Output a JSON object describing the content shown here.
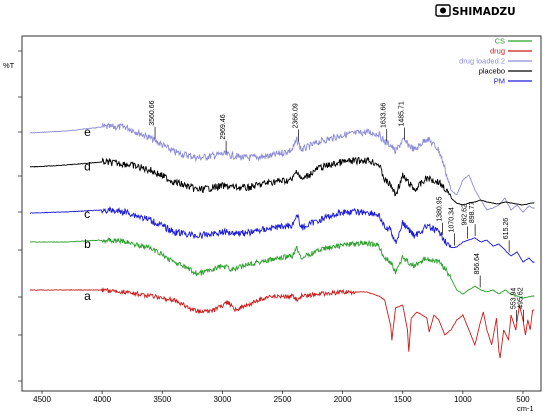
{
  "logo": {
    "brand": "SHIMADZU",
    "icon": "shimadzu-logo-icon"
  },
  "chart_data": {
    "type": "line",
    "title": "",
    "ylabel": "%T",
    "xlabel": "cm-1",
    "xlim": [
      4600,
      400
    ],
    "x_reversed": true,
    "grid": false,
    "legend_position": "top-right",
    "x_ticks": [
      4500,
      4000,
      3500,
      3000,
      2500,
      2000,
      1500,
      1000,
      500
    ],
    "x_tick_labels": [
      "4500",
      "4000",
      "3500",
      "3000",
      "2500",
      "2000",
      "1500",
      "1000",
      "500"
    ],
    "legend": [
      {
        "label": "CS",
        "color": "#2aa02a"
      },
      {
        "label": "drug",
        "color": "#cc1a1a"
      },
      {
        "label": "drug loaded 2",
        "color": "#8c8cd9"
      },
      {
        "label": "placebo",
        "color": "#000000"
      },
      {
        "label": "PM",
        "color": "#1a1ad9"
      }
    ],
    "series": [
      {
        "letter": "e",
        "color": "#8c8cd9",
        "noise": 1.6,
        "noiseRange": [
          4000,
          1100
        ],
        "points": [
          [
            4600,
            133
          ],
          [
            4300,
            131
          ],
          [
            4000,
            127
          ],
          [
            3800,
            127
          ],
          [
            3600,
            138
          ],
          [
            3400,
            152
          ],
          [
            3200,
            158
          ],
          [
            3000,
            154
          ],
          [
            2800,
            158
          ],
          [
            2600,
            156
          ],
          [
            2420,
            150
          ],
          [
            2380,
            140
          ],
          [
            2340,
            150
          ],
          [
            2200,
            142
          ],
          [
            2000,
            135
          ],
          [
            1800,
            132
          ],
          [
            1700,
            134
          ],
          [
            1650,
            142
          ],
          [
            1600,
            145
          ],
          [
            1560,
            152
          ],
          [
            1500,
            140
          ],
          [
            1400,
            150
          ],
          [
            1300,
            138
          ],
          [
            1200,
            150
          ],
          [
            1150,
            168
          ],
          [
            1100,
            190
          ],
          [
            1050,
            195
          ],
          [
            1000,
            180
          ],
          [
            950,
            175
          ],
          [
            900,
            190
          ],
          [
            850,
            200
          ],
          [
            800,
            210
          ],
          [
            750,
            208
          ],
          [
            700,
            205
          ],
          [
            650,
            198
          ],
          [
            600,
            210
          ],
          [
            550,
            205
          ],
          [
            500,
            212
          ],
          [
            450,
            206
          ],
          [
            420,
            208
          ]
        ]
      },
      {
        "letter": "d",
        "color": "#000000",
        "noise": 1.6,
        "noiseRange": [
          4000,
          1100
        ],
        "points": [
          [
            4600,
            167
          ],
          [
            4300,
            165
          ],
          [
            4000,
            162
          ],
          [
            3800,
            164
          ],
          [
            3600,
            170
          ],
          [
            3400,
            182
          ],
          [
            3200,
            190
          ],
          [
            3000,
            186
          ],
          [
            2800,
            188
          ],
          [
            2600,
            182
          ],
          [
            2420,
            180
          ],
          [
            2380,
            170
          ],
          [
            2340,
            180
          ],
          [
            2200,
            168
          ],
          [
            2000,
            162
          ],
          [
            1800,
            160
          ],
          [
            1700,
            164
          ],
          [
            1650,
            180
          ],
          [
            1600,
            185
          ],
          [
            1560,
            195
          ],
          [
            1500,
            176
          ],
          [
            1400,
            190
          ],
          [
            1300,
            178
          ],
          [
            1200,
            182
          ],
          [
            1150,
            188
          ],
          [
            1100,
            198
          ],
          [
            1050,
            203
          ],
          [
            1000,
            205
          ],
          [
            950,
            203
          ],
          [
            900,
            202
          ],
          [
            850,
            200
          ],
          [
            800,
            202
          ],
          [
            750,
            203
          ],
          [
            700,
            204
          ],
          [
            650,
            202
          ],
          [
            600,
            203
          ],
          [
            500,
            205
          ],
          [
            420,
            203
          ]
        ]
      },
      {
        "letter": "c",
        "color": "#1a1ad9",
        "noise": 1.5,
        "noiseRange": [
          4000,
          1100
        ],
        "points": [
          [
            4600,
            213
          ],
          [
            4300,
            212
          ],
          [
            4000,
            210
          ],
          [
            3800,
            212
          ],
          [
            3600,
            220
          ],
          [
            3400,
            232
          ],
          [
            3200,
            236
          ],
          [
            3000,
            232
          ],
          [
            2800,
            233
          ],
          [
            2600,
            228
          ],
          [
            2420,
            225
          ],
          [
            2380,
            215
          ],
          [
            2340,
            228
          ],
          [
            2200,
            220
          ],
          [
            2000,
            212
          ],
          [
            1800,
            212
          ],
          [
            1700,
            215
          ],
          [
            1650,
            228
          ],
          [
            1600,
            230
          ],
          [
            1560,
            243
          ],
          [
            1500,
            223
          ],
          [
            1400,
            236
          ],
          [
            1300,
            226
          ],
          [
            1200,
            232
          ],
          [
            1150,
            240
          ],
          [
            1100,
            248
          ],
          [
            1050,
            247
          ],
          [
            1000,
            242
          ],
          [
            950,
            240
          ],
          [
            900,
            238
          ],
          [
            850,
            242
          ],
          [
            800,
            240
          ],
          [
            750,
            246
          ],
          [
            700,
            244
          ],
          [
            650,
            250
          ],
          [
            600,
            256
          ],
          [
            550,
            252
          ],
          [
            500,
            262
          ],
          [
            450,
            258
          ],
          [
            420,
            262
          ]
        ]
      },
      {
        "letter": "b",
        "color": "#2aa02a",
        "noise": 1.2,
        "noiseRange": [
          4000,
          1100
        ],
        "points": [
          [
            4600,
            242
          ],
          [
            4300,
            242
          ],
          [
            4000,
            240
          ],
          [
            3800,
            242
          ],
          [
            3600,
            248
          ],
          [
            3400,
            262
          ],
          [
            3200,
            274
          ],
          [
            3000,
            266
          ],
          [
            2900,
            270
          ],
          [
            2800,
            264
          ],
          [
            2600,
            260
          ],
          [
            2420,
            256
          ],
          [
            2380,
            248
          ],
          [
            2340,
            258
          ],
          [
            2200,
            250
          ],
          [
            2000,
            245
          ],
          [
            1800,
            243
          ],
          [
            1700,
            246
          ],
          [
            1650,
            258
          ],
          [
            1600,
            262
          ],
          [
            1560,
            272
          ],
          [
            1500,
            258
          ],
          [
            1400,
            266
          ],
          [
            1300,
            258
          ],
          [
            1200,
            262
          ],
          [
            1150,
            268
          ],
          [
            1100,
            278
          ],
          [
            1050,
            290
          ],
          [
            1000,
            294
          ],
          [
            950,
            290
          ],
          [
            900,
            286
          ],
          [
            850,
            290
          ],
          [
            800,
            292
          ],
          [
            750,
            290
          ],
          [
            700,
            294
          ],
          [
            650,
            290
          ],
          [
            600,
            294
          ],
          [
            500,
            298
          ],
          [
            420,
            296
          ]
        ]
      },
      {
        "letter": "a",
        "color": "#cc1a1a",
        "noise": 1.0,
        "noiseRange": [
          4000,
          1900
        ],
        "points": [
          [
            4600,
            290
          ],
          [
            4300,
            290
          ],
          [
            4000,
            290
          ],
          [
            3800,
            292
          ],
          [
            3600,
            296
          ],
          [
            3400,
            300
          ],
          [
            3250,
            310
          ],
          [
            3100,
            312
          ],
          [
            3000,
            306
          ],
          [
            2950,
            302
          ],
          [
            2900,
            310
          ],
          [
            2800,
            306
          ],
          [
            2700,
            300
          ],
          [
            2600,
            296
          ],
          [
            2500,
            297
          ],
          [
            2420,
            296
          ],
          [
            2380,
            300
          ],
          [
            2340,
            296
          ],
          [
            2200,
            294
          ],
          [
            2000,
            292
          ],
          [
            1800,
            292
          ],
          [
            1700,
            296
          ],
          [
            1650,
            300
          ],
          [
            1600,
            326
          ],
          [
            1590,
            340
          ],
          [
            1560,
            308
          ],
          [
            1500,
            305
          ],
          [
            1460,
            330
          ],
          [
            1450,
            352
          ],
          [
            1430,
            318
          ],
          [
            1380,
            312
          ],
          [
            1300,
            318
          ],
          [
            1280,
            332
          ],
          [
            1240,
            315
          ],
          [
            1200,
            320
          ],
          [
            1150,
            335
          ],
          [
            1100,
            330
          ],
          [
            1050,
            320
          ],
          [
            1000,
            315
          ],
          [
            950,
            330
          ],
          [
            900,
            345
          ],
          [
            860,
            325
          ],
          [
            830,
            312
          ],
          [
            800,
            330
          ],
          [
            760,
            345
          ],
          [
            720,
            318
          ],
          [
            700,
            352
          ],
          [
            690,
            358
          ],
          [
            660,
            330
          ],
          [
            620,
            340
          ],
          [
            600,
            315
          ],
          [
            560,
            330
          ],
          [
            530,
            305
          ],
          [
            500,
            320
          ],
          [
            480,
            335
          ],
          [
            460,
            320
          ],
          [
            440,
            330
          ],
          [
            420,
            310
          ]
        ]
      }
    ],
    "peak_labels": [
      {
        "text": "3560.66",
        "x": 3560,
        "curve": "e"
      },
      {
        "text": "2969.46",
        "x": 2969,
        "curve": "e"
      },
      {
        "text": "2366.09",
        "x": 2366,
        "curve": "e"
      },
      {
        "text": "1633.66",
        "x": 1633,
        "curve": "e"
      },
      {
        "text": "1485.71",
        "x": 1485,
        "curve": "e"
      },
      {
        "text": "1380.95",
        "x": 1170,
        "curve": "c"
      },
      {
        "text": "1070.34",
        "x": 1070,
        "curve": "c"
      },
      {
        "text": "962.62",
        "x": 962,
        "curve": "c"
      },
      {
        "text": "898.77",
        "x": 898,
        "curve": "c"
      },
      {
        "text": "856.64",
        "x": 856,
        "curve": "b"
      },
      {
        "text": "615.26",
        "x": 615,
        "curve": "c"
      },
      {
        "text": "553.94",
        "x": 553,
        "curve": "a"
      },
      {
        "text": "495.62",
        "x": 495,
        "curve": "a"
      }
    ]
  }
}
